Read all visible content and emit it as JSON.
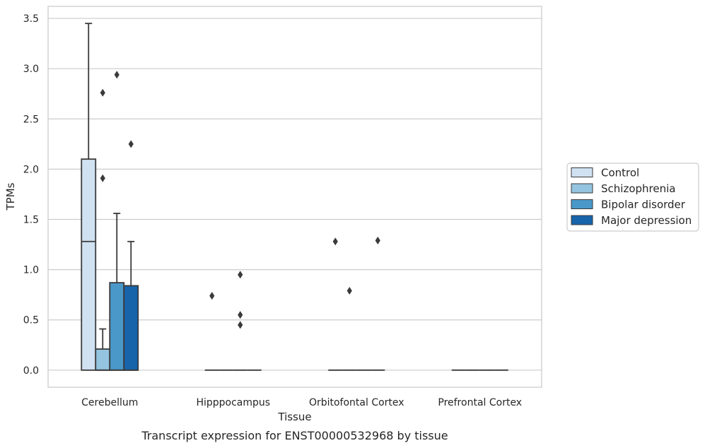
{
  "caption": "Transcript expression for ENST00000532968 by tissue",
  "chart_data": {
    "type": "box",
    "title": "",
    "xlabel": "Tissue",
    "ylabel": "TPMs",
    "ylim": [
      -0.17,
      3.62
    ],
    "yticks": [
      "0.0",
      "0.5",
      "1.0",
      "1.5",
      "2.0",
      "2.5",
      "3.0",
      "3.5"
    ],
    "grid": "horizontal",
    "legend_position": "right",
    "categories": [
      "Cerebellum",
      "Hipppocampus",
      "Orbitofontal Cortex",
      "Prefrontal Cortex"
    ],
    "series": [
      {
        "name": "Control",
        "color": "#d0e1f2",
        "boxes": [
          {
            "q1": 0,
            "median": 1.28,
            "q3": 2.1,
            "whisker_low": 0,
            "whisker_high": 3.45,
            "outliers": []
          },
          {
            "q1": 0,
            "median": 0,
            "q3": 0,
            "whisker_low": 0,
            "whisker_high": 0,
            "outliers": [
              0.74
            ]
          },
          {
            "q1": 0,
            "median": 0,
            "q3": 0,
            "whisker_low": 0,
            "whisker_high": 0,
            "outliers": [
              1.28
            ]
          },
          {
            "q1": 0,
            "median": 0,
            "q3": 0,
            "whisker_low": 0,
            "whisker_high": 0,
            "outliers": []
          }
        ]
      },
      {
        "name": "Schizophrenia",
        "color": "#94c4df",
        "boxes": [
          {
            "q1": 0,
            "median": 0,
            "q3": 0.21,
            "whisker_low": 0,
            "whisker_high": 0.41,
            "outliers": [
              1.91,
              2.76
            ]
          },
          {
            "q1": 0,
            "median": 0,
            "q3": 0,
            "whisker_low": 0,
            "whisker_high": 0,
            "outliers": []
          },
          {
            "q1": 0,
            "median": 0,
            "q3": 0,
            "whisker_low": 0,
            "whisker_high": 0,
            "outliers": [
              0.79
            ]
          },
          {
            "q1": 0,
            "median": 0,
            "q3": 0,
            "whisker_low": 0,
            "whisker_high": 0,
            "outliers": []
          }
        ]
      },
      {
        "name": "Bipolar disorder",
        "color": "#4a98c9",
        "boxes": [
          {
            "q1": 0,
            "median": 0,
            "q3": 0.87,
            "whisker_low": 0,
            "whisker_high": 1.56,
            "outliers": [
              2.94
            ]
          },
          {
            "q1": 0,
            "median": 0,
            "q3": 0,
            "whisker_low": 0,
            "whisker_high": 0,
            "outliers": [
              0.45,
              0.55,
              0.95
            ]
          },
          {
            "q1": 0,
            "median": 0,
            "q3": 0,
            "whisker_low": 0,
            "whisker_high": 0,
            "outliers": []
          },
          {
            "q1": 0,
            "median": 0,
            "q3": 0,
            "whisker_low": 0,
            "whisker_high": 0,
            "outliers": []
          }
        ]
      },
      {
        "name": "Major depression",
        "color": "#1764ab",
        "boxes": [
          {
            "q1": 0,
            "median": 0,
            "q3": 0.84,
            "whisker_low": 0,
            "whisker_high": 1.28,
            "outliers": [
              2.25
            ]
          },
          {
            "q1": 0,
            "median": 0,
            "q3": 0,
            "whisker_low": 0,
            "whisker_high": 0,
            "outliers": []
          },
          {
            "q1": 0,
            "median": 0,
            "q3": 0,
            "whisker_low": 0,
            "whisker_high": 0,
            "outliers": [
              1.29
            ]
          },
          {
            "q1": 0,
            "median": 0,
            "q3": 0,
            "whisker_low": 0,
            "whisker_high": 0,
            "outliers": []
          }
        ]
      }
    ]
  }
}
